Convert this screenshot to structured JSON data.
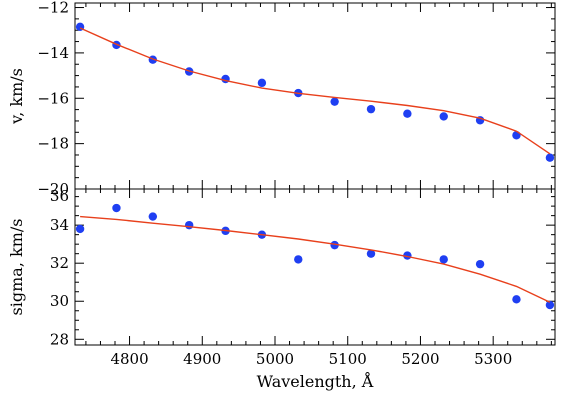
{
  "chart_data": [
    {
      "type": "scatter",
      "ylabel": "v, km/s",
      "xlim": [
        4725,
        5385
      ],
      "ylim": [
        -20,
        -11.8
      ],
      "y_ticks": [
        -20,
        -18,
        -16,
        -14,
        -12
      ],
      "y_tick_labels": [
        "−20",
        "−18",
        "−16",
        "−14",
        "−12"
      ],
      "series": [
        {
          "kind": "points",
          "color": "#1f3ff2",
          "x": [
            4732,
            4782,
            4832,
            4882,
            4932,
            4982,
            5032,
            5082,
            5132,
            5182,
            5232,
            5282,
            5332,
            5378
          ],
          "y": [
            -12.85,
            -13.65,
            -14.3,
            -14.82,
            -15.15,
            -15.32,
            -15.77,
            -16.15,
            -16.48,
            -16.68,
            -16.8,
            -16.97,
            -17.63,
            -18.62
          ]
        },
        {
          "kind": "fit-line",
          "color": "#e8401c",
          "x": [
            4732,
            4782,
            4832,
            4882,
            4932,
            4982,
            5032,
            5082,
            5132,
            5182,
            5232,
            5282,
            5332,
            5378
          ],
          "y": [
            -12.9,
            -13.62,
            -14.27,
            -14.8,
            -15.22,
            -15.55,
            -15.78,
            -15.96,
            -16.13,
            -16.32,
            -16.55,
            -16.88,
            -17.45,
            -18.45
          ]
        }
      ]
    },
    {
      "type": "scatter",
      "ylabel": "sigma, km/s",
      "xlabel": "Wavelength, Å",
      "xlim": [
        4725,
        5385
      ],
      "ylim": [
        27.7,
        35.9
      ],
      "x_ticks": [
        4800,
        4900,
        5000,
        5100,
        5200,
        5300
      ],
      "x_tick_labels": [
        "4800",
        "4900",
        "5000",
        "5100",
        "5200",
        "5300"
      ],
      "y_ticks": [
        28,
        30,
        32,
        34
      ],
      "y_tick_labels": [
        "28",
        "30",
        "32",
        "34"
      ],
      "top_tick_label": "36",
      "series": [
        {
          "kind": "points",
          "color": "#1f3ff2",
          "x": [
            4732,
            4782,
            4832,
            4882,
            4932,
            4982,
            5032,
            5082,
            5132,
            5182,
            5232,
            5282,
            5332,
            5378
          ],
          "y": [
            33.8,
            34.9,
            34.45,
            34.0,
            33.7,
            33.5,
            32.2,
            32.95,
            32.5,
            32.4,
            32.2,
            31.95,
            30.1,
            29.8
          ]
        },
        {
          "kind": "fit-line",
          "color": "#e8401c",
          "x": [
            4732,
            4782,
            4832,
            4882,
            4932,
            4982,
            5032,
            5082,
            5132,
            5182,
            5232,
            5282,
            5332,
            5378
          ],
          "y": [
            34.45,
            34.3,
            34.1,
            33.92,
            33.72,
            33.5,
            33.27,
            33.0,
            32.7,
            32.35,
            31.95,
            31.42,
            30.78,
            29.95
          ]
        }
      ]
    }
  ]
}
